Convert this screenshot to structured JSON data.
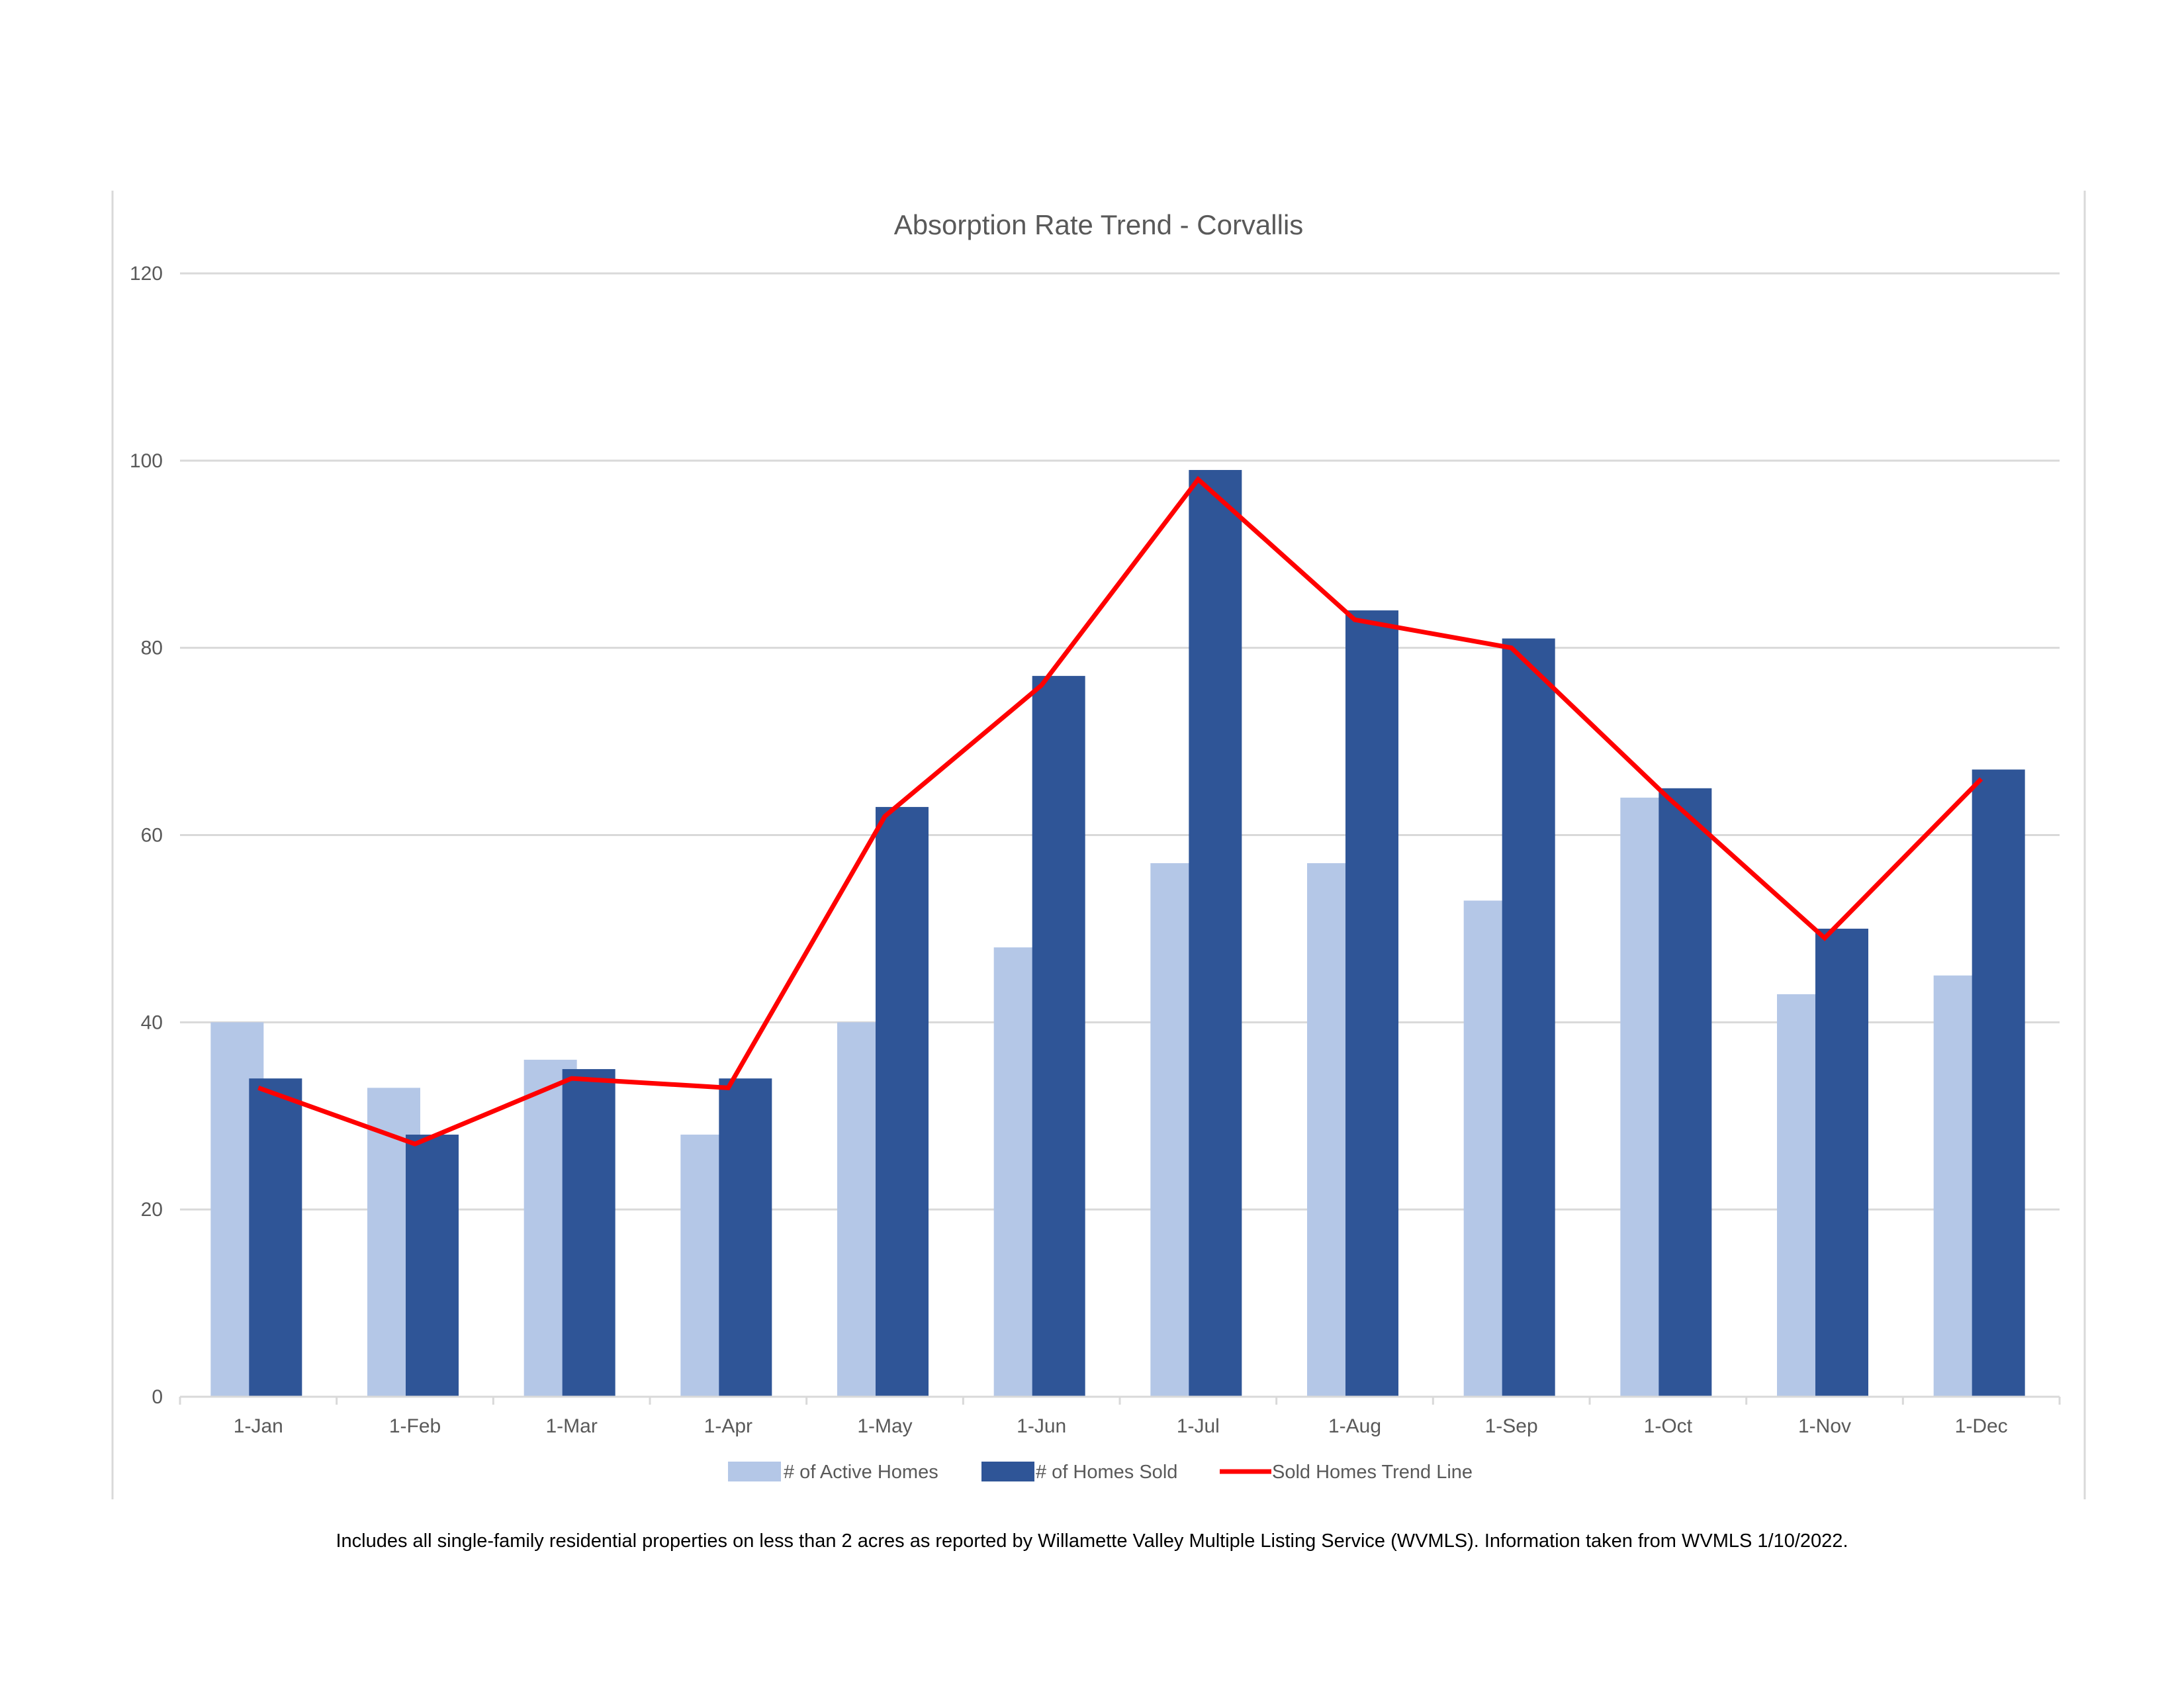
{
  "chart_data": {
    "type": "bar",
    "title": "Absorption Rate Trend - Corvallis",
    "categories": [
      "1-Jan",
      "1-Feb",
      "1-Mar",
      "1-Apr",
      "1-May",
      "1-Jun",
      "1-Jul",
      "1-Aug",
      "1-Sep",
      "1-Oct",
      "1-Nov",
      "1-Dec"
    ],
    "series": [
      {
        "name": "# of Active Homes",
        "kind": "bar",
        "color": "#b4c7e7",
        "values": [
          40,
          33,
          36,
          28,
          40,
          48,
          57,
          57,
          53,
          64,
          43,
          45
        ]
      },
      {
        "name": "# of Homes Sold",
        "kind": "bar",
        "color": "#2f5597",
        "values": [
          34,
          28,
          35,
          34,
          63,
          77,
          99,
          84,
          81,
          65,
          50,
          67
        ]
      },
      {
        "name": "Sold Homes Trend Line",
        "kind": "line",
        "color": "#ff0000",
        "values": [
          33,
          27,
          34,
          33,
          62,
          76,
          98,
          83,
          80,
          64,
          49,
          66
        ]
      }
    ],
    "ylim": [
      0,
      120
    ],
    "yticks": [
      "0",
      "20",
      "40",
      "60",
      "80",
      "100",
      "120"
    ],
    "grid": true,
    "legend": "bottom"
  },
  "footnote": "Includes all single-family residential properties on less than 2 acres as reported by Willamette Valley Multiple Listing Service (WVMLS). Information taken from WVMLS 1/10/2022."
}
